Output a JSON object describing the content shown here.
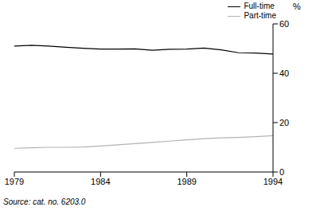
{
  "chart_data": {
    "type": "line",
    "y_label": "%",
    "source": "Source: cat. no. 6203.0",
    "x": [
      1979,
      1980,
      1981,
      1982,
      1983,
      1984,
      1985,
      1986,
      1987,
      1988,
      1989,
      1990,
      1991,
      1992,
      1993,
      1994
    ],
    "series": [
      {
        "name": "Full-time",
        "color": "#000000",
        "values": [
          51,
          51.3,
          51,
          50.5,
          50.1,
          49.8,
          49.8,
          49.9,
          49.3,
          49.7,
          49.8,
          50.2,
          49.5,
          48.3,
          48.2,
          47.8
        ]
      },
      {
        "name": "Part-time",
        "color": "#b3b3b3",
        "values": [
          9.6,
          9.8,
          10,
          10,
          10.1,
          10.5,
          11,
          11.5,
          12,
          12.5,
          13,
          13.5,
          13.8,
          14,
          14.3,
          14.7
        ]
      }
    ],
    "xlim": [
      1979,
      1994
    ],
    "xticks": [
      1979,
      1984,
      1989,
      1994
    ],
    "ylim": [
      0,
      60
    ],
    "yticks": [
      0,
      20,
      40,
      60
    ],
    "grid": false,
    "legend": "top right"
  }
}
